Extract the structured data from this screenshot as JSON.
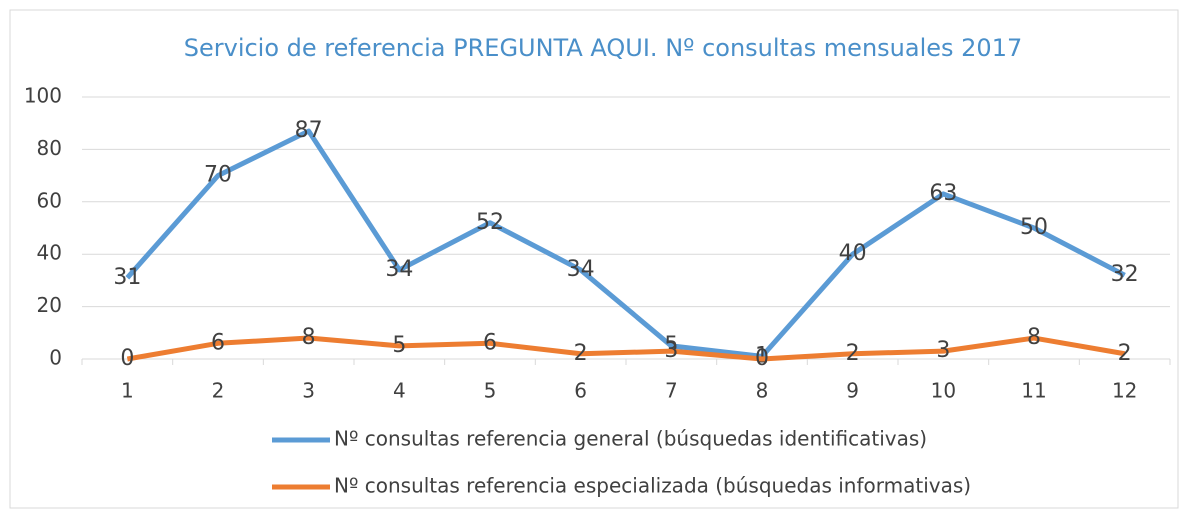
{
  "chart_data": {
    "type": "line",
    "title": "Servicio de referencia PREGUNTA AQUI. Nº consultas mensuales 2017",
    "categories": [
      "1",
      "2",
      "3",
      "4",
      "5",
      "6",
      "7",
      "8",
      "9",
      "10",
      "11",
      "12"
    ],
    "series": [
      {
        "name": "Nº consultas referencia general (búsquedas identificativas)",
        "color": "#5b9bd5",
        "values": [
          31,
          70,
          87,
          34,
          52,
          34,
          5,
          1,
          40,
          63,
          50,
          32
        ]
      },
      {
        "name": "Nº consultas referencia especializada (búsquedas informativas)",
        "color": "#ed7d31",
        "values": [
          0,
          6,
          8,
          5,
          6,
          2,
          3,
          0,
          2,
          3,
          8,
          2
        ]
      }
    ],
    "ylim": [
      0,
      100
    ],
    "yticks": [
      0,
      20,
      40,
      60,
      80,
      100
    ],
    "grid": true,
    "legend": "bottom"
  }
}
